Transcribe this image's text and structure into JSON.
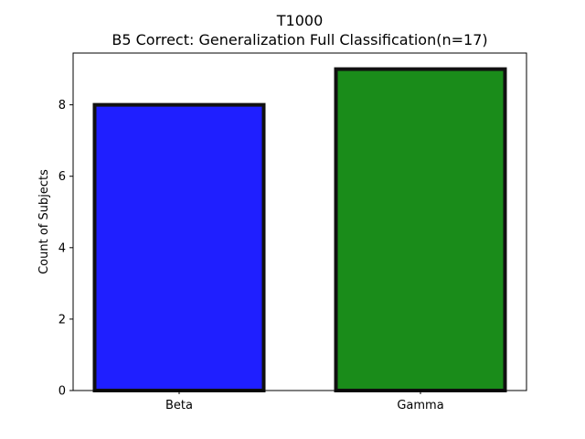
{
  "chart_data": {
    "type": "bar",
    "title": "T1000",
    "subtitle": "B5 Correct: Generalization Full Classification(n=17)",
    "xlabel": "",
    "ylabel": "Count of Subjects",
    "categories": [
      "Beta",
      "Gamma"
    ],
    "values": [
      8,
      9
    ],
    "colors": [
      "#1f1fff",
      "#1a8c1a"
    ],
    "edge_color": "#111111",
    "ylim": [
      0,
      9.45
    ],
    "yticks": [
      0,
      2,
      4,
      6,
      8
    ],
    "grid": false,
    "legend": "none"
  }
}
